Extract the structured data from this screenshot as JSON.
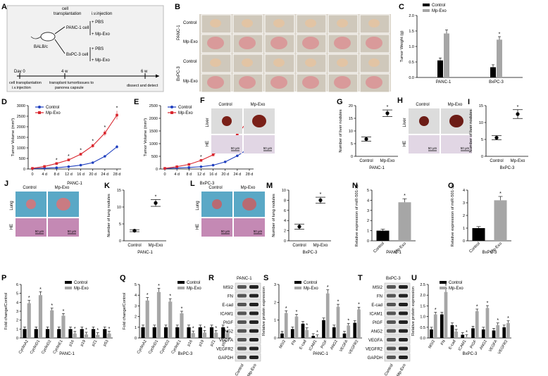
{
  "panels": {
    "A": {
      "letter": "A",
      "cell_transplantation": "cell",
      "cell_transplantation2": "transplantation",
      "iv_injection": "i.v.injection",
      "mouse": "BALB/c",
      "panc_cell": "PANC-1 cell",
      "bxpc_cell": "BxPC-3 cell",
      "pbs": "+ PBS",
      "mpexo": "+ Mp-Exo",
      "day0": "Day 0",
      "w4": "4 w",
      "w6": "6 w",
      "step1a": "cell transplantation",
      "step1b": "i.v.injection",
      "step2a": "transplant tumortissues to",
      "step2b": "panorea capsule",
      "step3": "dissect and detect"
    },
    "B": {
      "letter": "B",
      "control": "Control",
      "mpexo": "Mp-Exo",
      "panc": "PANC-1",
      "bxpc": "BxPC-3"
    },
    "C": {
      "letter": "C"
    },
    "D": {
      "letter": "D"
    },
    "E": {
      "letter": "E"
    },
    "F": {
      "letter": "F",
      "row1": "Liver",
      "row2": "HE",
      "col1": "Control",
      "col2": "Mp-Exo",
      "scale": "50 μm"
    },
    "G": {
      "letter": "G"
    },
    "H": {
      "letter": "H",
      "row1": "Liver",
      "row2": "HE",
      "col1": "Control",
      "col2": "Mp-Exo",
      "scale": "50 μm"
    },
    "I": {
      "letter": "I"
    },
    "J": {
      "letter": "J",
      "row1": "Lung",
      "row2": "HE",
      "col1": "Control",
      "col2": "Mp-Exo",
      "scale": "50 μm"
    },
    "K": {
      "letter": "K"
    },
    "L": {
      "letter": "L",
      "row1": "Lung",
      "row2": "HE",
      "col1": "Control",
      "col2": "Mp-Exo",
      "scale": "50 μm"
    },
    "M": {
      "letter": "M"
    },
    "N": {
      "letter": "N"
    },
    "O": {
      "letter": "O"
    },
    "P": {
      "letter": "P"
    },
    "Q": {
      "letter": "Q"
    },
    "R": {
      "letter": "R",
      "cell": "PANC-1",
      "proteins": [
        "MSI2",
        "FN",
        "E-cad",
        "ICAM1",
        "PIGF",
        "ANG2",
        "VEGFA",
        "VEGFR2",
        "GAPDH"
      ],
      "lanes": [
        "Control",
        "Mp-Exo"
      ]
    },
    "S": {
      "letter": "S"
    },
    "T": {
      "letter": "T",
      "cell": "BxPC-3",
      "proteins": [
        "MSI2",
        "FN",
        "E-cad",
        "ICAM1",
        "PIGF",
        "ANG2",
        "VEGFA",
        "VEGFR2",
        "GAPDH"
      ],
      "lanes": [
        "Control",
        "Mp-Exo"
      ]
    },
    "U": {
      "letter": "U"
    }
  },
  "legend": {
    "control": "Control",
    "mpexo": "Mp-Exo"
  },
  "colors": {
    "control": "#000000",
    "mpexo": "#a6a6a6",
    "blue": "#1f3fbf",
    "red": "#d9262e"
  },
  "chart_data": [
    {
      "id": "C",
      "type": "bar",
      "ylabel": "Tumor Weight (g)",
      "ylim": [
        0,
        2.0
      ],
      "yticks": [
        0.0,
        0.5,
        1.0,
        1.5,
        2.0
      ],
      "categories": [
        "PANC-1",
        "BxPC-3"
      ],
      "series": [
        {
          "name": "Control",
          "values": [
            0.55,
            0.33
          ]
        },
        {
          "name": "Mp-Exo",
          "values": [
            1.42,
            1.22
          ]
        }
      ],
      "stars": [
        false,
        true
      ]
    },
    {
      "id": "D",
      "type": "line",
      "ylabel": "Tumor Volume (mm³)",
      "xlabel": "PANC-1",
      "ylim": [
        0,
        3000
      ],
      "yticks": [
        0,
        500,
        1000,
        1500,
        2000,
        2500,
        3000
      ],
      "x": [
        "0",
        "4 d",
        "8 d",
        "12 d",
        "16 d",
        "20 d",
        "24 d",
        "28 d"
      ],
      "series": [
        {
          "name": "Control",
          "values": [
            20,
            40,
            60,
            110,
            180,
            300,
            600,
            1050
          ]
        },
        {
          "name": "Mp-Exo",
          "values": [
            30,
            120,
            260,
            430,
            700,
            1100,
            1700,
            2550
          ]
        }
      ],
      "stars": [
        false,
        false,
        true,
        true,
        true,
        true,
        true,
        true
      ]
    },
    {
      "id": "E",
      "type": "line",
      "ylabel": "Tumor Volume (mm³)",
      "xlabel": "BxPC-3",
      "ylim": [
        0,
        2500
      ],
      "yticks": [
        0,
        500,
        1000,
        1500,
        2000,
        2500
      ],
      "x": [
        "0",
        "4 d",
        "8 d",
        "12 d",
        "16 d",
        "20 d",
        "24 d",
        "28 d"
      ],
      "series": [
        {
          "name": "Control",
          "values": [
            20,
            40,
            60,
            90,
            150,
            280,
            520,
            820
          ]
        },
        {
          "name": "Mp-Exo",
          "values": [
            25,
            90,
            180,
            340,
            560,
            900,
            1380,
            1950
          ]
        }
      ],
      "stars": [
        false,
        false,
        false,
        true,
        true,
        true,
        true,
        true
      ]
    },
    {
      "id": "G",
      "type": "scatter",
      "ylabel": "Number of liver nodules",
      "xlabel": "PANC-1",
      "ylim": [
        0,
        20
      ],
      "yticks": [
        0,
        5,
        10,
        15,
        20
      ],
      "categories": [
        "Control",
        "Mp-Exo"
      ],
      "values": [
        6.8,
        17.0
      ],
      "errors": [
        0.8,
        1.3
      ]
    },
    {
      "id": "I",
      "type": "scatter",
      "ylabel": "Number of liver nodules",
      "xlabel": "BxPC-3",
      "ylim": [
        0,
        15
      ],
      "yticks": [
        0,
        5,
        10,
        15
      ],
      "categories": [
        "Control",
        "Mp-Exo"
      ],
      "values": [
        5.5,
        12.5
      ],
      "errors": [
        0.6,
        1.3
      ]
    },
    {
      "id": "K",
      "type": "scatter",
      "ylabel": "Number of lung nodules",
      "xlabel": "PANC-1",
      "ylim": [
        0,
        15
      ],
      "yticks": [
        0,
        5,
        10,
        15
      ],
      "categories": [
        "Control",
        "Mp-Exo"
      ],
      "values": [
        3.0,
        11.2
      ],
      "errors": [
        0.3,
        1.0
      ]
    },
    {
      "id": "M",
      "type": "scatter",
      "ylabel": "Number of lung nodules",
      "xlabel": "BxPC-3",
      "ylim": [
        0,
        10
      ],
      "yticks": [
        0,
        2,
        4,
        6,
        8,
        10
      ],
      "categories": [
        "Control",
        "Mp-Exo"
      ],
      "values": [
        2.8,
        8.0
      ],
      "errors": [
        0.5,
        0.6
      ]
    },
    {
      "id": "N",
      "type": "bar",
      "ylabel": "Relative expression of miR-501-3p",
      "xlabel": "PANC-1",
      "ylim": [
        0,
        5
      ],
      "yticks": [
        0,
        1,
        2,
        3,
        4,
        5
      ],
      "categories": [
        "Control",
        "Mp-Exo"
      ],
      "values": [
        1.0,
        3.8
      ],
      "errors": [
        0.15,
        0.35
      ]
    },
    {
      "id": "O",
      "type": "bar",
      "ylabel": "Relative expression of miR-501-3p",
      "xlabel": "BxPC-3",
      "ylim": [
        0,
        4
      ],
      "yticks": [
        0,
        1,
        2,
        3,
        4
      ],
      "categories": [
        "Control",
        "Mp-Exo"
      ],
      "values": [
        1.0,
        3.2
      ],
      "errors": [
        0.12,
        0.3
      ]
    },
    {
      "id": "P",
      "type": "bar",
      "ylabel": "Fold change/Control",
      "xlabel": "PANC-1",
      "ylim": [
        0,
        6
      ],
      "yticks": [
        0,
        1,
        2,
        3,
        4,
        5,
        6
      ],
      "categories": [
        "CyclinA2",
        "CyclinD1",
        "CyclinD2",
        "CyclinE1",
        "p16",
        "p19",
        "p21",
        "p53"
      ],
      "series": [
        {
          "name": "Control",
          "values": [
            1,
            1,
            1,
            1,
            1,
            1,
            1,
            1
          ]
        },
        {
          "name": "Mp-Exo",
          "values": [
            3.9,
            4.8,
            3.1,
            2.5,
            0.5,
            0.4,
            0.35,
            0.5
          ]
        }
      ],
      "stars": [
        true,
        true,
        true,
        true,
        true,
        true,
        true,
        true
      ]
    },
    {
      "id": "Q",
      "type": "bar",
      "ylabel": "Fold change/Control",
      "xlabel": "BxPC-3",
      "ylim": [
        0,
        5
      ],
      "yticks": [
        0,
        1,
        2,
        3,
        4,
        5
      ],
      "categories": [
        "CyclinA2",
        "CyclinD1",
        "CyclinD2",
        "CyclinE1",
        "p16",
        "p19",
        "p21",
        "p53"
      ],
      "series": [
        {
          "name": "Control",
          "values": [
            1,
            1,
            1,
            1,
            1,
            1,
            1,
            1
          ]
        },
        {
          "name": "Mp-Exo",
          "values": [
            3.5,
            4.3,
            3.4,
            2.3,
            0.45,
            0.5,
            0.5,
            0.45
          ]
        }
      ],
      "stars": [
        true,
        true,
        true,
        true,
        true,
        true,
        true,
        true
      ]
    },
    {
      "id": "S",
      "type": "bar",
      "ylabel": "Relative protein expression",
      "xlabel": "PANC-1",
      "ylim": [
        0,
        3
      ],
      "yticks": [
        0,
        1,
        2,
        3
      ],
      "categories": [
        "MSI2",
        "FN",
        "E-cad",
        "ICAM1",
        "PIGF",
        "ANG2",
        "VEGFA",
        "VEGFR2"
      ],
      "series": [
        {
          "name": "Control",
          "values": [
            0.25,
            0.5,
            0.8,
            0.12,
            1.0,
            0.6,
            0.25,
            0.85
          ]
        },
        {
          "name": "Mp-Exo",
          "values": [
            1.4,
            1.2,
            0.45,
            0.05,
            2.5,
            1.75,
            0.7,
            1.6
          ]
        }
      ],
      "stars": [
        true,
        true,
        true,
        true,
        true,
        true,
        true,
        true
      ]
    },
    {
      "id": "U",
      "type": "bar",
      "ylabel": "Relative protein expression",
      "xlabel": "BxPC-3",
      "ylim": [
        0,
        2.5
      ],
      "yticks": [
        0.0,
        0.5,
        1.0,
        1.5,
        2.0,
        2.5
      ],
      "categories": [
        "MSI2",
        "FN",
        "E-cad",
        "ICAM1",
        "PIGF",
        "ANG2",
        "VEGFA",
        "VEGFR2"
      ],
      "series": [
        {
          "name": "Control",
          "values": [
            0.4,
            1.1,
            0.6,
            0.15,
            0.45,
            0.4,
            0.35,
            0.5
          ]
        },
        {
          "name": "Mp-Exo",
          "values": [
            1.1,
            2.15,
            0.3,
            0.05,
            1.25,
            1.4,
            0.6,
            0.7
          ]
        }
      ],
      "stars": [
        true,
        true,
        true,
        true,
        true,
        true,
        true,
        true
      ]
    }
  ]
}
